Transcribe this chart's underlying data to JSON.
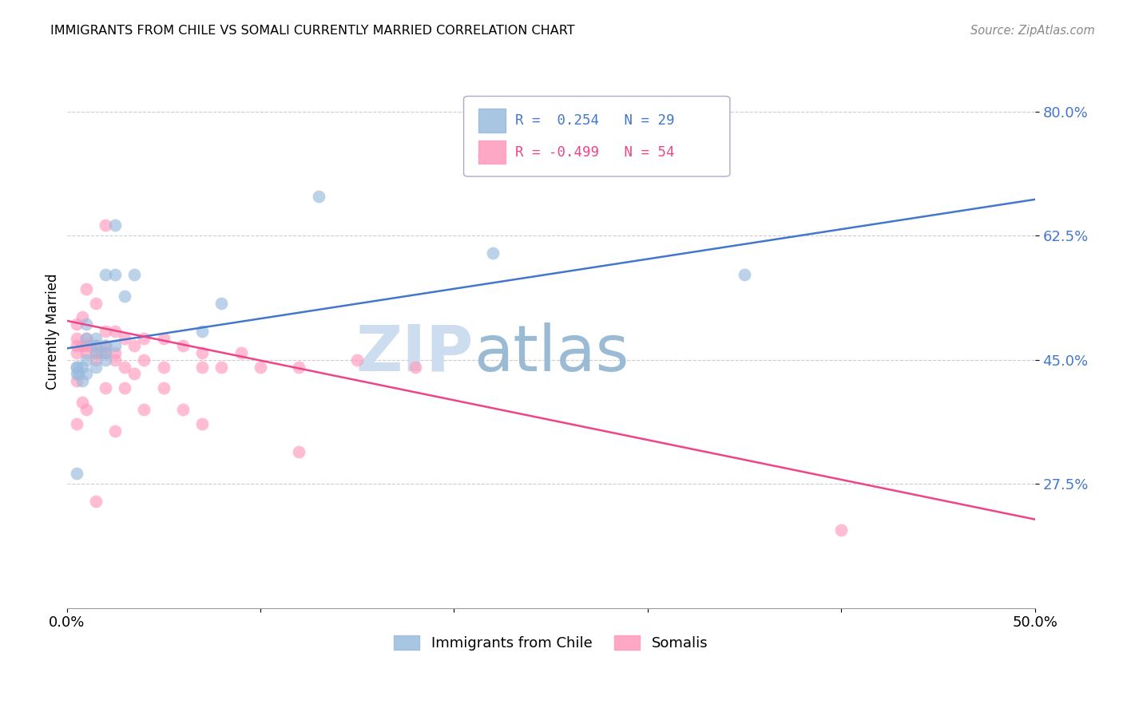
{
  "title": "IMMIGRANTS FROM CHILE VS SOMALI CURRENTLY MARRIED CORRELATION CHART",
  "source": "Source: ZipAtlas.com",
  "ylabel": "Currently Married",
  "xlim": [
    0.0,
    0.5
  ],
  "ylim": [
    0.1,
    0.88
  ],
  "yticks": [
    0.275,
    0.45,
    0.625,
    0.8
  ],
  "ytick_labels": [
    "27.5%",
    "45.0%",
    "62.5%",
    "80.0%"
  ],
  "xticks": [
    0.0,
    0.1,
    0.2,
    0.3,
    0.4,
    0.5
  ],
  "xtick_labels": [
    "0.0%",
    "",
    "",
    "",
    "",
    "50.0%"
  ],
  "legend_label1": "Immigrants from Chile",
  "legend_label2": "Somalis",
  "blue_color": "#99BBDD",
  "pink_color": "#FF99BB",
  "blue_line_color": "#4477CC",
  "pink_line_color": "#EE4488",
  "watermark_zip": "ZIP",
  "watermark_atlas": "atlas",
  "chile_x": [
    0.005,
    0.005,
    0.005,
    0.006,
    0.008,
    0.008,
    0.01,
    0.01,
    0.01,
    0.01,
    0.015,
    0.015,
    0.015,
    0.015,
    0.02,
    0.02,
    0.02,
    0.02,
    0.025,
    0.025,
    0.025,
    0.03,
    0.035,
    0.07,
    0.08,
    0.13,
    0.22,
    0.35,
    0.005
  ],
  "chile_y": [
    0.44,
    0.43,
    0.44,
    0.43,
    0.44,
    0.42,
    0.5,
    0.48,
    0.45,
    0.43,
    0.48,
    0.47,
    0.46,
    0.44,
    0.47,
    0.46,
    0.45,
    0.57,
    0.64,
    0.47,
    0.57,
    0.54,
    0.57,
    0.49,
    0.53,
    0.68,
    0.6,
    0.57,
    0.29
  ],
  "somali_x": [
    0.005,
    0.005,
    0.005,
    0.005,
    0.005,
    0.005,
    0.008,
    0.008,
    0.008,
    0.01,
    0.01,
    0.01,
    0.01,
    0.01,
    0.012,
    0.015,
    0.015,
    0.015,
    0.015,
    0.015,
    0.018,
    0.02,
    0.02,
    0.02,
    0.02,
    0.02,
    0.025,
    0.025,
    0.025,
    0.025,
    0.03,
    0.03,
    0.03,
    0.035,
    0.035,
    0.04,
    0.04,
    0.04,
    0.05,
    0.05,
    0.05,
    0.06,
    0.06,
    0.07,
    0.07,
    0.07,
    0.08,
    0.09,
    0.1,
    0.12,
    0.12,
    0.15,
    0.18,
    0.4
  ],
  "somali_y": [
    0.5,
    0.48,
    0.47,
    0.46,
    0.42,
    0.36,
    0.51,
    0.47,
    0.39,
    0.55,
    0.48,
    0.47,
    0.46,
    0.38,
    0.47,
    0.53,
    0.47,
    0.46,
    0.45,
    0.25,
    0.46,
    0.64,
    0.49,
    0.47,
    0.46,
    0.41,
    0.49,
    0.46,
    0.45,
    0.35,
    0.48,
    0.44,
    0.41,
    0.47,
    0.43,
    0.48,
    0.45,
    0.38,
    0.48,
    0.44,
    0.41,
    0.47,
    0.38,
    0.46,
    0.44,
    0.36,
    0.44,
    0.46,
    0.44,
    0.44,
    0.32,
    0.45,
    0.44,
    0.21
  ],
  "blue_line_x": [
    0.0,
    0.5
  ],
  "blue_line_y": [
    0.466,
    0.676
  ],
  "pink_line_x": [
    0.0,
    0.5
  ],
  "pink_line_y": [
    0.505,
    0.225
  ]
}
